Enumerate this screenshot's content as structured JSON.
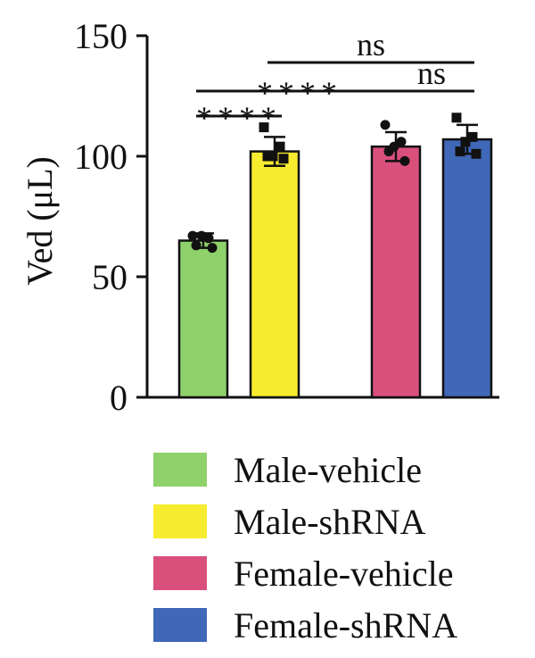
{
  "chart_data": {
    "type": "bar",
    "title": "",
    "xlabel": "",
    "ylabel": "Ved (μL)",
    "ylim": [
      0,
      150
    ],
    "yticks": [
      0,
      50,
      100,
      150
    ],
    "grid": false,
    "legend_position": "bottom",
    "categories": [
      "Male-vehicle",
      "Male-shRNA",
      "Female-vehicle",
      "Female-shRNA"
    ],
    "values": [
      65,
      102,
      104,
      107
    ],
    "errors": [
      3,
      6,
      6,
      6
    ],
    "colors": [
      "#8fd16a",
      "#f7ec2f",
      "#d9507c",
      "#4068b8"
    ],
    "points": [
      [
        {
          "y": 67,
          "marker": "circle"
        },
        {
          "y": 66,
          "marker": "circle"
        },
        {
          "y": 63,
          "marker": "circle"
        },
        {
          "y": 62,
          "marker": "circle"
        },
        {
          "y": 67,
          "marker": "circle"
        }
      ],
      [
        {
          "y": 112,
          "marker": "square"
        },
        {
          "y": 104,
          "marker": "square"
        },
        {
          "y": 100,
          "marker": "square"
        },
        {
          "y": 99,
          "marker": "square"
        },
        {
          "y": 100,
          "marker": "square"
        }
      ],
      [
        {
          "y": 113,
          "marker": "circle"
        },
        {
          "y": 106,
          "marker": "circle"
        },
        {
          "y": 102,
          "marker": "circle"
        },
        {
          "y": 98,
          "marker": "circle"
        },
        {
          "y": 104,
          "marker": "circle"
        }
      ],
      [
        {
          "y": 116,
          "marker": "square"
        },
        {
          "y": 108,
          "marker": "square"
        },
        {
          "y": 102,
          "marker": "square"
        },
        {
          "y": 101,
          "marker": "square"
        },
        {
          "y": 106,
          "marker": "square"
        }
      ]
    ],
    "comparisons": [
      {
        "from": 0,
        "to": 1,
        "label": "****"
      },
      {
        "from": 0,
        "to": 2,
        "label": "****"
      },
      {
        "from": 1,
        "to": 3,
        "label": "ns"
      },
      {
        "from": 2,
        "to": 3,
        "label": "ns"
      }
    ]
  }
}
